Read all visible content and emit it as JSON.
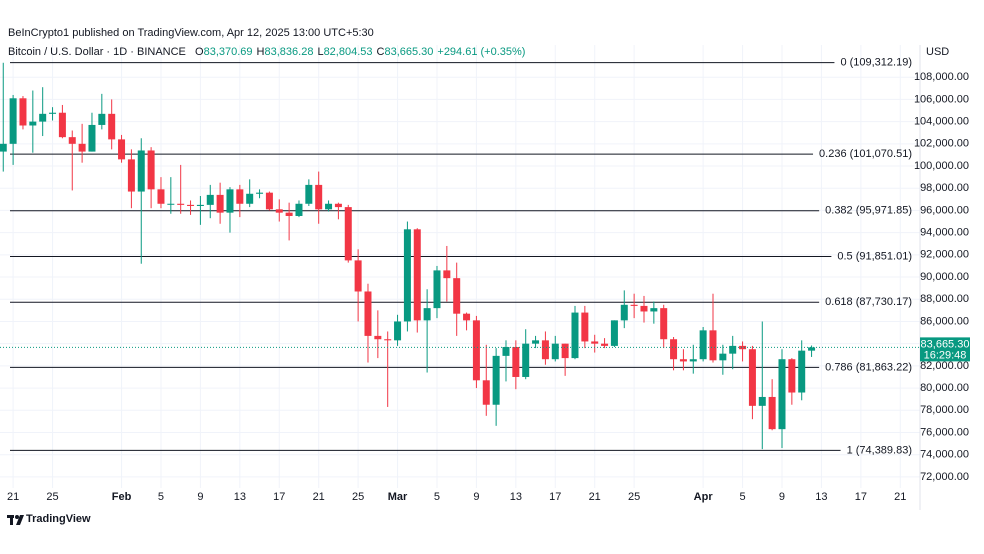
{
  "header": {
    "publisher": "BeInCrypto1 published on TradingView.com, Apr 12, 2025 13:00 UTC+5:30"
  },
  "footer": {
    "brand": "TradingView"
  },
  "chart_data": {
    "type": "candlestick",
    "title": "Bitcoin / U.S. Dollar · 1D · BINANCE",
    "ohlc_legend": [
      {
        "key": "O",
        "text": "83,370.69"
      },
      {
        "key": "H",
        "text": "83,836.28"
      },
      {
        "key": "L",
        "text": "82,804.53"
      },
      {
        "key": "C",
        "text": "83,665.30"
      }
    ],
    "change": "+294.61 (+0.35%)",
    "axis_unit": "USD",
    "up_color": "#089981",
    "down_color": "#f23645",
    "grid": true,
    "xlim": [
      -0.33,
      93
    ],
    "xticks": [
      {
        "value": 1,
        "label": "21"
      },
      {
        "value": 5,
        "label": "25"
      },
      {
        "value": 12,
        "label": "Feb"
      },
      {
        "value": 16,
        "label": "5"
      },
      {
        "value": 20,
        "label": "9"
      },
      {
        "value": 24,
        "label": "13"
      },
      {
        "value": 28,
        "label": "17"
      },
      {
        "value": 32,
        "label": "21"
      },
      {
        "value": 36,
        "label": "25"
      },
      {
        "value": 40,
        "label": "Mar"
      },
      {
        "value": 44,
        "label": "5"
      },
      {
        "value": 48,
        "label": "9"
      },
      {
        "value": 52,
        "label": "13"
      },
      {
        "value": 56,
        "label": "17"
      },
      {
        "value": 60,
        "label": "21"
      },
      {
        "value": 64,
        "label": "25"
      },
      {
        "value": 71,
        "label": "Apr"
      },
      {
        "value": 75,
        "label": "5"
      },
      {
        "value": 79,
        "label": "9"
      },
      {
        "value": 83,
        "label": "13"
      },
      {
        "value": 87,
        "label": "17"
      },
      {
        "value": 91,
        "label": "21"
      }
    ],
    "ylim": [
      71000,
      110900
    ],
    "yticks": [
      {
        "value": 72000,
        "label": "72,000.00"
      },
      {
        "value": 74000,
        "label": "74,000.00"
      },
      {
        "value": 76000,
        "label": "76,000.00"
      },
      {
        "value": 78000,
        "label": "78,000.00"
      },
      {
        "value": 80000,
        "label": "80,000.00"
      },
      {
        "value": 82000,
        "label": "82,000.00"
      },
      {
        "value": 84000,
        "label": "84,000.00"
      },
      {
        "value": 86000,
        "label": "86,000.00"
      },
      {
        "value": 88000,
        "label": "88,000.00"
      },
      {
        "value": 90000,
        "label": "90,000.00"
      },
      {
        "value": 92000,
        "label": "92,000.00"
      },
      {
        "value": 94000,
        "label": "94,000.00"
      },
      {
        "value": 96000,
        "label": "96,000.00"
      },
      {
        "value": 98000,
        "label": "98,000.00"
      },
      {
        "value": 100000,
        "label": "100,000.00"
      },
      {
        "value": 102000,
        "label": "102,000.00"
      },
      {
        "value": 104000,
        "label": "104,000.00"
      },
      {
        "value": 106000,
        "label": "106,000.00"
      },
      {
        "value": 108000,
        "label": "108,000.00"
      }
    ],
    "open": [
      101300,
      102000,
      106100,
      103650,
      104000,
      104700,
      104800,
      102600,
      102000,
      101300,
      103700,
      104700,
      102400,
      100600,
      97700,
      101400,
      97900,
      96600,
      96600,
      96500,
      96400,
      96500,
      97400,
      95800,
      97900,
      96600,
      97500,
      97600,
      96100,
      95800,
      95500,
      96600,
      98300,
      96100,
      96600,
      96300,
      91500,
      88700,
      84700,
      84400,
      84300,
      86000,
      94300,
      86100,
      87200,
      90600,
      89900,
      86700,
      86100,
      80700,
      78500,
      82900,
      83700,
      81000,
      84000,
      84300,
      82600,
      84000,
      82700,
      86800,
      84200,
      84000,
      83800,
      86100,
      87500,
      87400,
      86900,
      87200,
      84400,
      82600,
      82400,
      82600,
      85200,
      82500,
      83100,
      83800,
      83500,
      78400,
      79200,
      76300,
      82600,
      79600,
      83370.69
    ],
    "high": [
      109300,
      106400,
      106300,
      106800,
      107100,
      105300,
      105500,
      103200,
      103800,
      104800,
      106500,
      106000,
      102800,
      101500,
      102500,
      101700,
      99000,
      99000,
      100100,
      96900,
      97300,
      98300,
      98500,
      98100,
      98300,
      98800,
      97900,
      97700,
      97000,
      96700,
      96900,
      98800,
      99500,
      96900,
      96700,
      96500,
      92500,
      89400,
      87000,
      85100,
      86600,
      95000,
      94400,
      88900,
      91000,
      92800,
      91300,
      86800,
      86500,
      83900,
      83600,
      84300,
      84300,
      85300,
      84700,
      85100,
      84700,
      84000,
      87400,
      87400,
      84800,
      84500,
      86100,
      88800,
      88500,
      88300,
      87800,
      87500,
      84600,
      83500,
      83900,
      85500,
      88500,
      83900,
      84700,
      84200,
      83800,
      86000,
      80800,
      83500,
      82700,
      84300,
      83836.28
    ],
    "low": [
      99500,
      100100,
      103300,
      101200,
      102700,
      104100,
      102500,
      97800,
      100300,
      101300,
      103300,
      101500,
      100300,
      96200,
      91200,
      96200,
      96200,
      95700,
      95700,
      95600,
      94700,
      95300,
      94800,
      94000,
      95400,
      96300,
      97100,
      96000,
      95000,
      93300,
      95400,
      96400,
      94800,
      95900,
      95200,
      91300,
      86000,
      82300,
      82700,
      78300,
      83800,
      85100,
      85000,
      81400,
      86300,
      87800,
      84700,
      85200,
      80000,
      77500,
      76600,
      80600,
      79900,
      80800,
      83600,
      82100,
      82400,
      81100,
      82600,
      83600,
      83200,
      83600,
      83700,
      85400,
      86300,
      85900,
      85800,
      83600,
      81600,
      81600,
      81300,
      82400,
      82300,
      81200,
      81700,
      82400,
      77200,
      74500,
      76200,
      74600,
      78500,
      78900,
      82804.53
    ],
    "close": [
      102000,
      106100,
      103650,
      104000,
      104700,
      104800,
      102600,
      102000,
      101300,
      103700,
      104700,
      102400,
      100600,
      97700,
      101400,
      97900,
      96600,
      96600,
      96500,
      96400,
      96500,
      97400,
      95800,
      97900,
      96600,
      97500,
      97600,
      96100,
      95800,
      95500,
      96600,
      98300,
      96100,
      96600,
      96300,
      91500,
      88700,
      84700,
      84400,
      84300,
      86000,
      94300,
      86100,
      87200,
      90600,
      89900,
      86700,
      86100,
      80700,
      78500,
      82900,
      83700,
      81000,
      84000,
      84300,
      82600,
      84000,
      82700,
      86800,
      84200,
      84000,
      83800,
      86100,
      87500,
      87400,
      86900,
      87200,
      84400,
      82600,
      82400,
      82600,
      85200,
      82500,
      83100,
      83800,
      83500,
      78400,
      79200,
      76300,
      82600,
      79600,
      83370.69,
      83665.3
    ],
    "fib_levels": [
      {
        "value": 109312.19,
        "label": "0 (109,312.19)"
      },
      {
        "value": 101070.51,
        "label": "0.236 (101,070.51)"
      },
      {
        "value": 95971.85,
        "label": "0.382 (95,971.85)"
      },
      {
        "value": 91851.01,
        "label": "0.5 (91,851.01)"
      },
      {
        "value": 87730.17,
        "label": "0.618 (87,730.17)"
      },
      {
        "value": 81863.22,
        "label": "0.786 (81,863.22)"
      },
      {
        "value": 74389.83,
        "label": "1 (74,389.83)"
      }
    ],
    "last_price": {
      "value": 83665.3,
      "label": "83,665.30"
    },
    "countdown": "16:29:48"
  }
}
